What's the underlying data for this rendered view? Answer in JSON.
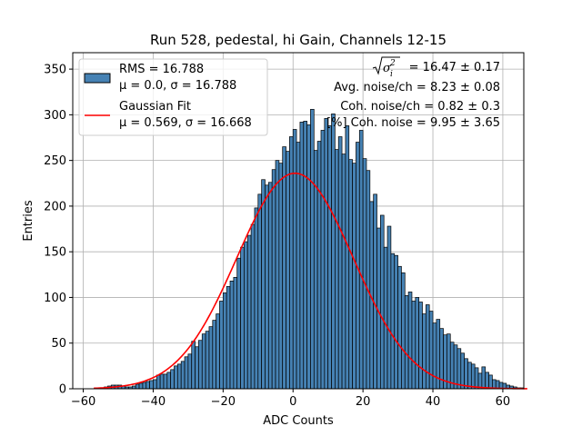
{
  "chart_data": {
    "type": "histogram",
    "title": "Run 528, pedestal, hi Gain, Channels 12-15",
    "xlabel": "ADC Counts",
    "ylabel": "Entries",
    "xlim": [
      -63,
      66
    ],
    "ylim": [
      0,
      368
    ],
    "xticks": [
      -60,
      -40,
      -20,
      0,
      20,
      40,
      60
    ],
    "yticks": [
      0,
      50,
      100,
      150,
      200,
      250,
      300,
      350
    ],
    "grid": true,
    "bar_color": "#4682b4",
    "bar_edge_color": "#000000",
    "fit_color": "#ff0000",
    "bins": {
      "start": -57,
      "width": 1,
      "counts": [
        0,
        0,
        1,
        2,
        3,
        4,
        4,
        4,
        3,
        2,
        2,
        3,
        5,
        6,
        7,
        8,
        9,
        10,
        15,
        16,
        16,
        18,
        21,
        25,
        27,
        30,
        35,
        38,
        52,
        46,
        53,
        60,
        63,
        68,
        75,
        82,
        96,
        105,
        112,
        118,
        122,
        143,
        155,
        161,
        168,
        180,
        198,
        213,
        229,
        223,
        226,
        240,
        250,
        247,
        265,
        260,
        276,
        284,
        270,
        292,
        293,
        289,
        306,
        261,
        271,
        283,
        296,
        288,
        301,
        262,
        276,
        257,
        288,
        251,
        247,
        270,
        283,
        252,
        239,
        205,
        213,
        176,
        190,
        155,
        178,
        148,
        146,
        134,
        127,
        102,
        106,
        96,
        100,
        95,
        82,
        92,
        85,
        72,
        76,
        66,
        59,
        60,
        51,
        48,
        44,
        39,
        33,
        29,
        27,
        23,
        17,
        24,
        18,
        15,
        10,
        9,
        7,
        6,
        4,
        3,
        2,
        1,
        1,
        0
      ]
    },
    "fit": {
      "mu": 0.569,
      "sigma": 16.668,
      "amplitude": 236
    },
    "legend": {
      "position": "top-left",
      "entries": [
        {
          "kind": "patch",
          "line1": "RMS = 16.788",
          "line2": "μ = 0.0, σ = 16.788"
        },
        {
          "kind": "line",
          "line1": "Gaussian Fit",
          "line2": "μ = 0.569, σ = 16.668"
        }
      ]
    },
    "annotations": {
      "sigma_sum": "= 16.47 ± 0.17",
      "avg_noise": "Avg. noise/ch = 8.23 ± 0.08",
      "coh_noise": "Coh. noise/ch = 0.82 ± 0.3",
      "pct_coh_noise": "[%] Coh. noise = 9.95 ± 3.65"
    }
  }
}
